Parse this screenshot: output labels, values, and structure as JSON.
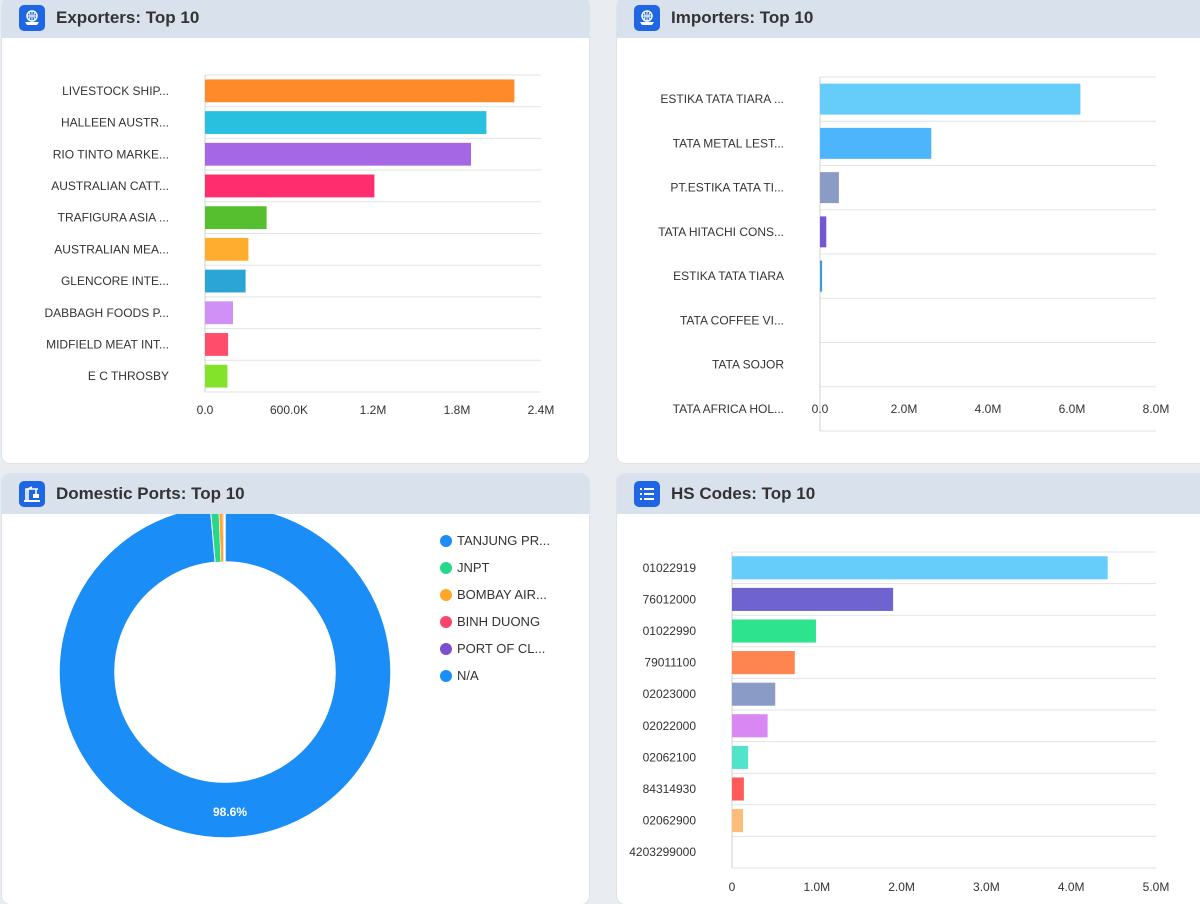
{
  "exporters": {
    "title": "Exporters: Top 10",
    "chart_data": {
      "type": "bar",
      "orientation": "horizontal",
      "categories": [
        "LIVESTOCK SHIP...",
        "HALLEEN AUSTR...",
        "RIO TINTO MARKE...",
        "AUSTRALIAN CATT...",
        "TRAFIGURA ASIA ...",
        "AUSTRALIAN MEA...",
        "GLENCORE INTE...",
        "DABBAGH FOODS P...",
        "MIDFIELD MEAT INT...",
        "E C THROSBY"
      ],
      "values": [
        2210000,
        2010000,
        1900000,
        1210000,
        440000,
        310000,
        290000,
        200000,
        165000,
        160000
      ],
      "colors": [
        "#ff8a2a",
        "#28c0de",
        "#a567e4",
        "#ff2d6e",
        "#56bf2f",
        "#ffad2f",
        "#2ba4d6",
        "#cf91f6",
        "#ff4d6b",
        "#82e32a"
      ],
      "ticks": [
        0,
        600000,
        1200000,
        1800000,
        2400000
      ],
      "tick_labels": [
        "0.0",
        "600.0K",
        "1.2M",
        "1.8M",
        "2.4M"
      ],
      "xlim": [
        0,
        2400000
      ]
    }
  },
  "importers": {
    "title": "Importers: Top 10",
    "chart_data": {
      "type": "bar",
      "orientation": "horizontal",
      "categories": [
        "ESTIKA TATA TIARA ...",
        "TATA METAL LEST...",
        "PT.ESTIKA TATA TI...",
        "TATA HITACHI CONS...",
        "ESTIKA TATA TIARA",
        "TATA COFFEE VI...",
        "TATA SOJOR",
        "TATA AFRICA HOL..."
      ],
      "values": [
        6200000,
        2650000,
        450000,
        150000,
        50000,
        0,
        0,
        0
      ],
      "colors": [
        "#66cdfb",
        "#4cb5fb",
        "#8a9bc5",
        "#7357d2",
        "#3a9ed0",
        "#cccccc",
        "#cccccc",
        "#cccccc"
      ],
      "ticks": [
        0,
        2000000,
        4000000,
        6000000,
        8000000
      ],
      "tick_labels": [
        "0.0",
        "2.0M",
        "4.0M",
        "6.0M",
        "8.0M"
      ],
      "xlim": [
        0,
        8000000
      ]
    }
  },
  "ports": {
    "title": "Domestic Ports: Top 10",
    "chart_data": {
      "type": "pie",
      "donut": true,
      "labels": [
        "TANJUNG PR...",
        "JNPT",
        "BOMBAY AIR...",
        "BINH DUONG",
        "PORT OF CL...",
        "N/A"
      ],
      "values": [
        98.6,
        0.8,
        0.4,
        0.1,
        0.05,
        0.05
      ],
      "colors": [
        "#1a8ef6",
        "#27d88a",
        "#ffa829",
        "#f8466a",
        "#7b4fd0",
        "#1a8ef6"
      ],
      "data_label": "98.6%"
    }
  },
  "hs": {
    "title": "HS Codes: Top 10",
    "chart_data": {
      "type": "bar",
      "orientation": "horizontal",
      "categories": [
        "01022919",
        "76012000",
        "01022990",
        "79011100",
        "02023000",
        "02022000",
        "02062100",
        "84314930",
        "02062900",
        "4203299000"
      ],
      "values": [
        4430000,
        1900000,
        990000,
        740000,
        510000,
        420000,
        190000,
        140000,
        130000,
        5000
      ],
      "colors": [
        "#66cdfb",
        "#6e63cf",
        "#2ee38e",
        "#ff8550",
        "#8a9bc5",
        "#d887f3",
        "#52e3cb",
        "#ff5a5a",
        "#fcbc7b",
        "#cccccc"
      ],
      "ticks": [
        0,
        1000000,
        2000000,
        3000000,
        4000000,
        5000000
      ],
      "tick_labels": [
        "0",
        "1.0M",
        "2.0M",
        "3.0M",
        "4.0M",
        "5.0M"
      ],
      "xlim": [
        0,
        5000000
      ]
    }
  }
}
